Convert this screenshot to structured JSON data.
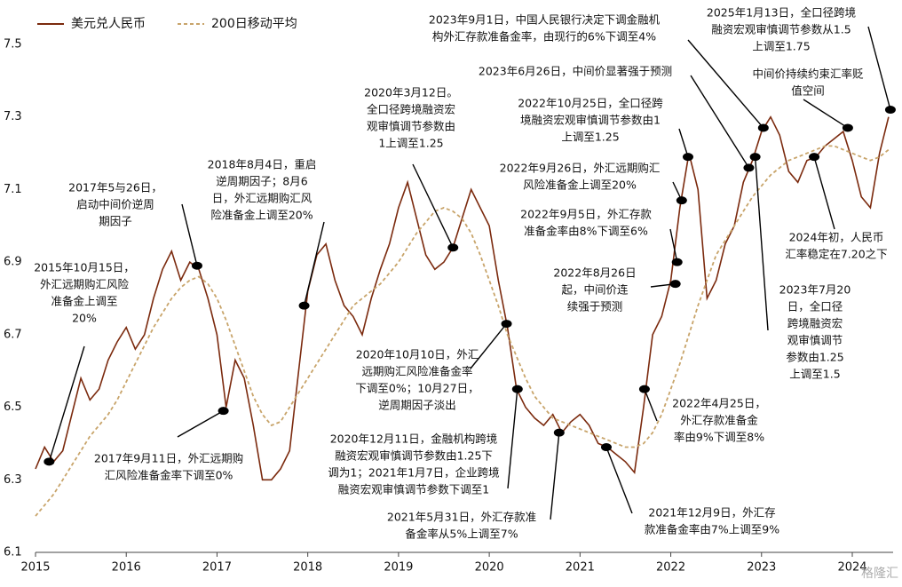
{
  "chart_data": {
    "type": "line",
    "legend": "upper left",
    "xlim": [
      2015,
      2024.45
    ],
    "xticks": [
      2015,
      2016,
      2017,
      2018,
      2019,
      2020,
      2021,
      2022,
      2023,
      2024
    ],
    "ylim": [
      6.1,
      7.5
    ],
    "yticks": [
      6.1,
      6.3,
      6.5,
      6.7,
      6.9,
      7.1,
      7.3,
      7.5
    ],
    "x": [
      2015.0,
      2015.1,
      2015.2,
      2015.3,
      2015.4,
      2015.5,
      2015.6,
      2015.7,
      2015.8,
      2015.9,
      2016.0,
      2016.1,
      2016.2,
      2016.3,
      2016.4,
      2016.5,
      2016.6,
      2016.7,
      2016.8,
      2016.9,
      2017.0,
      2017.1,
      2017.2,
      2017.3,
      2017.4,
      2017.5,
      2017.6,
      2017.7,
      2017.8,
      2017.9,
      2018.0,
      2018.1,
      2018.2,
      2018.3,
      2018.4,
      2018.5,
      2018.6,
      2018.7,
      2018.8,
      2018.9,
      2019.0,
      2019.1,
      2019.2,
      2019.3,
      2019.4,
      2019.5,
      2019.6,
      2019.7,
      2019.8,
      2019.9,
      2020.0,
      2020.1,
      2020.2,
      2020.3,
      2020.4,
      2020.5,
      2020.6,
      2020.7,
      2020.8,
      2020.9,
      2021.0,
      2021.1,
      2021.2,
      2021.3,
      2021.4,
      2021.5,
      2021.6,
      2021.7,
      2021.8,
      2021.9,
      2022.0,
      2022.1,
      2022.2,
      2022.3,
      2022.4,
      2022.5,
      2022.6,
      2022.7,
      2022.8,
      2022.9,
      2023.0,
      2023.1,
      2023.2,
      2023.3,
      2023.4,
      2023.5,
      2023.6,
      2023.7,
      2023.8,
      2023.9,
      2024.0,
      2024.1,
      2024.2,
      2024.3,
      2024.4
    ],
    "series": [
      {
        "name": "美元兑人民币",
        "color": "#7b2a0e",
        "dashed": false,
        "values": [
          6.33,
          6.39,
          6.35,
          6.38,
          6.48,
          6.58,
          6.52,
          6.55,
          6.63,
          6.68,
          6.72,
          6.66,
          6.7,
          6.8,
          6.88,
          6.93,
          6.85,
          6.9,
          6.88,
          6.8,
          6.7,
          6.5,
          6.63,
          6.58,
          6.45,
          6.3,
          6.3,
          6.33,
          6.38,
          6.6,
          6.82,
          6.92,
          6.95,
          6.85,
          6.78,
          6.75,
          6.7,
          6.8,
          6.88,
          6.95,
          7.05,
          7.12,
          7.02,
          6.92,
          6.88,
          6.9,
          6.94,
          7.02,
          7.1,
          7.05,
          7.0,
          6.85,
          6.72,
          6.55,
          6.5,
          6.47,
          6.45,
          6.48,
          6.43,
          6.46,
          6.48,
          6.45,
          6.4,
          6.39,
          6.37,
          6.35,
          6.32,
          6.5,
          6.7,
          6.75,
          6.85,
          7.05,
          7.2,
          7.1,
          6.8,
          6.85,
          6.95,
          7.0,
          7.12,
          7.18,
          7.26,
          7.3,
          7.25,
          7.15,
          7.12,
          7.18,
          7.19,
          7.22,
          7.24,
          7.26,
          7.18,
          7.08,
          7.05,
          7.2,
          7.3
        ]
      },
      {
        "name": "200日移动平均",
        "color": "#c8a46a",
        "dashed": true,
        "values": [
          6.2,
          6.23,
          6.26,
          6.3,
          6.34,
          6.38,
          6.42,
          6.45,
          6.48,
          6.52,
          6.57,
          6.62,
          6.67,
          6.72,
          6.76,
          6.8,
          6.83,
          6.85,
          6.86,
          6.84,
          6.8,
          6.74,
          6.67,
          6.6,
          6.53,
          6.48,
          6.45,
          6.46,
          6.5,
          6.54,
          6.58,
          6.62,
          6.66,
          6.7,
          6.74,
          6.78,
          6.8,
          6.82,
          6.84,
          6.87,
          6.9,
          6.94,
          6.98,
          7.01,
          7.04,
          7.05,
          7.04,
          7.02,
          6.98,
          6.92,
          6.85,
          6.78,
          6.7,
          6.64,
          6.58,
          6.53,
          6.5,
          6.47,
          6.46,
          6.45,
          6.44,
          6.43,
          6.42,
          6.41,
          6.4,
          6.39,
          6.39,
          6.4,
          6.43,
          6.48,
          6.55,
          6.62,
          6.7,
          6.78,
          6.85,
          6.92,
          6.96,
          7.0,
          7.04,
          7.08,
          7.11,
          7.14,
          7.16,
          7.18,
          7.19,
          7.2,
          7.21,
          7.22,
          7.22,
          7.21,
          7.2,
          7.19,
          7.18,
          7.19,
          7.21
        ]
      }
    ],
    "annotations": [
      {
        "text": [
          "2015年10月15日，",
          "外汇远期购汇风险",
          "准备金上调至",
          "20%"
        ],
        "x": 2015.15,
        "y": 6.35
      },
      {
        "text": [
          "2017年9月11日，外汇远期购",
          "汇风险准备金率下调至0%"
        ],
        "x": 2017.07,
        "y": 6.49
      },
      {
        "text": [
          "2017年5与26日，",
          "启动中间价逆周",
          "期因子"
        ],
        "x": 2016.78,
        "y": 6.89
      },
      {
        "text": [
          "2018年8月4日，重启",
          "逆周期因子；8月6",
          "日，外汇远期购汇风",
          "险准备金上调至20%"
        ],
        "x": 2017.96,
        "y": 6.78
      },
      {
        "text": [
          "2020年3月12日。",
          "全口径跨境融资宏",
          "观审慎调节参数由",
          "1上调至1.25"
        ],
        "x": 2019.6,
        "y": 6.94
      },
      {
        "text": [
          "2020年10月10日，外汇",
          "远期购汇风险准备金率",
          "下调至0%；10月27日，",
          "逆周期因子淡出"
        ],
        "x": 2020.19,
        "y": 6.73
      },
      {
        "text": [
          "2020年12月11日，金融机构跨境",
          "融资宏观审慎调节参数由1.25下",
          "调为1；2021年1月7日，企业跨境",
          "融资宏观审慎调节参数下调至1"
        ],
        "x": 2020.31,
        "y": 6.55
      },
      {
        "text": [
          "2021年5月31日，外汇存款准",
          "备金率从5%上调至7%"
        ],
        "x": 2020.77,
        "y": 6.43
      },
      {
        "text": [
          "2021年12月9日，外汇存",
          "款准备金率由7%上调至9%"
        ],
        "x": 2021.29,
        "y": 6.39
      },
      {
        "text": [
          "2022年4月25日，",
          "外汇存款准备金",
          "率由9%下调至8%"
        ],
        "x": 2021.71,
        "y": 6.55
      },
      {
        "text": [
          "2022年8月26日",
          "起，中间价连",
          "续强于预测"
        ],
        "x": 2022.05,
        "y": 6.84
      },
      {
        "text": [
          "2022年9月5日，外汇存款",
          "准备金率由8%下调至6%"
        ],
        "x": 2022.07,
        "y": 6.9
      },
      {
        "text": [
          "2022年9月26日，外汇远期购汇",
          "风险准备金上调至20%"
        ],
        "x": 2022.12,
        "y": 7.07
      },
      {
        "text": [
          "2022年10月25日，全口径跨",
          "境融资宏观审慎调节参数由1",
          "上调至1.25"
        ],
        "x": 2022.19,
        "y": 7.19
      },
      {
        "text": [
          "2023年6月26日，中间价显著强于预测"
        ],
        "x": 2022.86,
        "y": 7.16
      },
      {
        "text": [
          "2023年7月20",
          "日，全口径",
          "跨境融资宏",
          "观审慎调节",
          "参数由1.25",
          "上调至1.5"
        ],
        "x": 2022.93,
        "y": 7.19
      },
      {
        "text": [
          "2023年9月1日，中国人民银行决定下调金融机",
          "构外汇存款准备金率，由现行的6%下调至4%"
        ],
        "x": 2023.02,
        "y": 7.27
      },
      {
        "text": [
          "2024年初，人民币",
          "汇率稳定在7.20之下"
        ],
        "x": 2023.58,
        "y": 7.19
      },
      {
        "text": [
          "中间价持续约束汇率贬",
          "值空间"
        ],
        "x": 2023.95,
        "y": 7.27
      },
      {
        "text": [
          "2025年1月13日，全口径跨境",
          "融资宏观审慎调节参数从1.5",
          "上调至1.75"
        ],
        "x": 2024.42,
        "y": 7.32
      }
    ],
    "watermark": "格隆汇"
  }
}
